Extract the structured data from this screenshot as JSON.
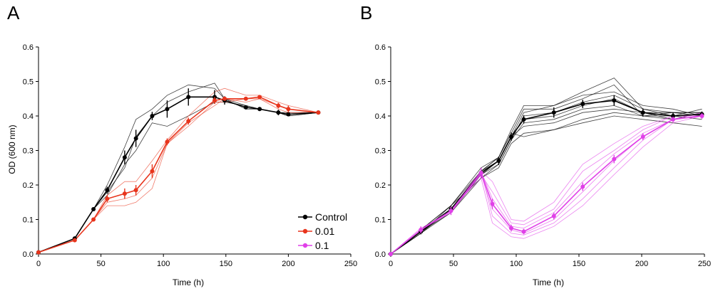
{
  "chart_data": [
    {
      "type": "line",
      "panel_label": "A",
      "xlabel": "Time (h)",
      "ylabel": "OD (600 nm)",
      "xlim": [
        0,
        250
      ],
      "ylim": [
        0,
        0.6
      ],
      "xticks": [
        0,
        50,
        100,
        150,
        200,
        250
      ],
      "yticks": [
        0.0,
        0.1,
        0.2,
        0.3,
        0.4,
        0.5,
        0.6
      ],
      "xtick_labels": [
        "0",
        "50",
        "100",
        "150",
        "200",
        "250"
      ],
      "ytick_labels": [
        "0.0",
        "0.1",
        "0.2",
        "0.3",
        "0.4",
        "0.5",
        "0.6"
      ],
      "legend": {
        "position": "lower-right",
        "entries": [
          "Control",
          "0.01",
          "0.1"
        ]
      },
      "series": [
        {
          "name": "Control",
          "color": "#000000",
          "x": [
            0,
            29,
            44,
            55,
            69,
            78,
            91,
            103,
            120,
            141,
            149,
            166,
            177,
            192,
            200,
            224
          ],
          "means": [
            0.005,
            0.045,
            0.13,
            0.185,
            0.28,
            0.335,
            0.4,
            0.42,
            0.455,
            0.455,
            0.445,
            0.425,
            0.42,
            0.41,
            0.405,
            0.41
          ],
          "errors": [
            0.002,
            0.004,
            0.005,
            0.01,
            0.02,
            0.025,
            0.012,
            0.025,
            0.025,
            0.02,
            0.012,
            0.005,
            0.005,
            0.008,
            0.005,
            0.005
          ],
          "replicates": [
            [
              0.005,
              0.045,
              0.13,
              0.2,
              0.31,
              0.39,
              0.42,
              0.46,
              0.49,
              0.48,
              0.45,
              0.43,
              0.42,
              0.41,
              0.4,
              0.41
            ],
            [
              0.005,
              0.045,
              0.13,
              0.18,
              0.25,
              0.34,
              0.4,
              0.44,
              0.47,
              0.495,
              0.45,
              0.42,
              0.42,
              0.41,
              0.4,
              0.41
            ],
            [
              0.005,
              0.045,
              0.13,
              0.17,
              0.26,
              0.3,
              0.38,
              0.37,
              0.4,
              0.44,
              0.44,
              0.43,
              0.42,
              0.41,
              0.41,
              0.41
            ]
          ]
        },
        {
          "name": "0.01",
          "color": "#e8341c",
          "x": [
            0,
            29,
            44,
            55,
            69,
            78,
            91,
            103,
            120,
            141,
            149,
            166,
            177,
            192,
            200,
            224
          ],
          "means": [
            0.005,
            0.04,
            0.1,
            0.16,
            0.175,
            0.185,
            0.24,
            0.325,
            0.385,
            0.445,
            0.45,
            0.45,
            0.455,
            0.43,
            0.42,
            0.41
          ],
          "errors": [
            0.002,
            0.004,
            0.005,
            0.01,
            0.015,
            0.015,
            0.02,
            0.01,
            0.01,
            0.01,
            0.005,
            0.005,
            0.005,
            0.008,
            0.01,
            0.005
          ],
          "replicates": [
            [
              0.005,
              0.04,
              0.1,
              0.17,
              0.21,
              0.21,
              0.27,
              0.33,
              0.4,
              0.47,
              0.48,
              0.46,
              0.46,
              0.44,
              0.43,
              0.41
            ],
            [
              0.005,
              0.04,
              0.1,
              0.15,
              0.16,
              0.17,
              0.22,
              0.32,
              0.37,
              0.44,
              0.44,
              0.45,
              0.45,
              0.43,
              0.42,
              0.41
            ],
            [
              0.005,
              0.04,
              0.1,
              0.14,
              0.14,
              0.15,
              0.19,
              0.32,
              0.38,
              0.43,
              0.45,
              0.44,
              0.45,
              0.42,
              0.41,
              0.41
            ]
          ]
        }
      ]
    },
    {
      "type": "line",
      "panel_label": "B",
      "xlabel": "Time (h)",
      "ylabel": "",
      "xlim": [
        0,
        250
      ],
      "ylim": [
        0,
        0.6
      ],
      "xticks": [
        0,
        50,
        100,
        150,
        200,
        250
      ],
      "yticks": [
        0.0,
        0.1,
        0.2,
        0.3,
        0.4,
        0.5,
        0.6
      ],
      "xtick_labels": [
        "0",
        "50",
        "100",
        "150",
        "200",
        "250"
      ],
      "ytick_labels": [
        "0.0",
        "0.1",
        "0.2",
        "0.3",
        "0.4",
        "0.5",
        "0.6"
      ],
      "series": [
        {
          "name": "Control",
          "color": "#000000",
          "x": [
            0,
            24,
            48,
            72,
            86,
            96,
            106,
            130,
            153,
            178,
            201,
            225,
            248
          ],
          "means": [
            0.0,
            0.065,
            0.13,
            0.235,
            0.27,
            0.34,
            0.39,
            0.41,
            0.435,
            0.445,
            0.41,
            0.4,
            0.405
          ],
          "errors": [
            0.002,
            0.008,
            0.01,
            0.015,
            0.012,
            0.012,
            0.012,
            0.015,
            0.012,
            0.015,
            0.012,
            0.01,
            0.008
          ],
          "replicates": [
            [
              0.0,
              0.07,
              0.14,
              0.25,
              0.28,
              0.36,
              0.43,
              0.43,
              0.47,
              0.51,
              0.42,
              0.41,
              0.41
            ],
            [
              0.0,
              0.065,
              0.13,
              0.24,
              0.28,
              0.35,
              0.42,
              0.42,
              0.45,
              0.49,
              0.4,
              0.41,
              0.41
            ],
            [
              0.0,
              0.06,
              0.13,
              0.23,
              0.27,
              0.34,
              0.41,
              0.43,
              0.46,
              0.47,
              0.43,
              0.42,
              0.4
            ],
            [
              0.0,
              0.065,
              0.12,
              0.23,
              0.26,
              0.33,
              0.4,
              0.41,
              0.44,
              0.46,
              0.42,
              0.4,
              0.42
            ],
            [
              0.0,
              0.07,
              0.13,
              0.24,
              0.27,
              0.34,
              0.39,
              0.4,
              0.43,
              0.45,
              0.41,
              0.39,
              0.4
            ],
            [
              0.0,
              0.06,
              0.14,
              0.22,
              0.26,
              0.33,
              0.38,
              0.39,
              0.42,
              0.43,
              0.4,
              0.4,
              0.39
            ],
            [
              0.0,
              0.065,
              0.13,
              0.23,
              0.27,
              0.34,
              0.37,
              0.38,
              0.41,
              0.42,
              0.41,
              0.41,
              0.4
            ],
            [
              0.0,
              0.06,
              0.12,
              0.22,
              0.25,
              0.32,
              0.35,
              0.36,
              0.39,
              0.41,
              0.4,
              0.39,
              0.41
            ],
            [
              0.0,
              0.07,
              0.14,
              0.24,
              0.28,
              0.35,
              0.34,
              0.36,
              0.38,
              0.4,
              0.39,
              0.38,
              0.37
            ]
          ]
        },
        {
          "name": "0.1",
          "color": "#e040e8",
          "x": [
            0,
            24,
            48,
            72,
            81,
            96,
            106,
            130,
            153,
            178,
            201,
            225,
            248
          ],
          "means": [
            0.0,
            0.07,
            0.125,
            0.235,
            0.145,
            0.075,
            0.065,
            0.11,
            0.195,
            0.275,
            0.34,
            0.39,
            0.4
          ],
          "errors": [
            0.002,
            0.01,
            0.012,
            0.015,
            0.015,
            0.01,
            0.008,
            0.01,
            0.012,
            0.012,
            0.01,
            0.008,
            0.008
          ],
          "replicates": [
            [
              0.0,
              0.07,
              0.13,
              0.24,
              0.21,
              0.1,
              0.095,
              0.15,
              0.26,
              0.32,
              0.37,
              0.4,
              0.4
            ],
            [
              0.0,
              0.075,
              0.12,
              0.23,
              0.18,
              0.09,
              0.085,
              0.13,
              0.24,
              0.3,
              0.36,
              0.4,
              0.4
            ],
            [
              0.0,
              0.065,
              0.13,
              0.24,
              0.16,
              0.08,
              0.075,
              0.12,
              0.21,
              0.29,
              0.35,
              0.39,
              0.4
            ],
            [
              0.0,
              0.07,
              0.125,
              0.23,
              0.13,
              0.07,
              0.06,
              0.1,
              0.18,
              0.27,
              0.34,
              0.39,
              0.4
            ],
            [
              0.0,
              0.07,
              0.12,
              0.24,
              0.11,
              0.06,
              0.055,
              0.09,
              0.16,
              0.25,
              0.33,
              0.39,
              0.41
            ],
            [
              0.0,
              0.065,
              0.13,
              0.22,
              0.09,
              0.05,
              0.045,
              0.08,
              0.14,
              0.23,
              0.31,
              0.38,
              0.4
            ]
          ]
        }
      ]
    }
  ],
  "legend_colors": {
    "Control": "#000000",
    "0.01": "#e8341c",
    "0.1": "#e040e8"
  }
}
